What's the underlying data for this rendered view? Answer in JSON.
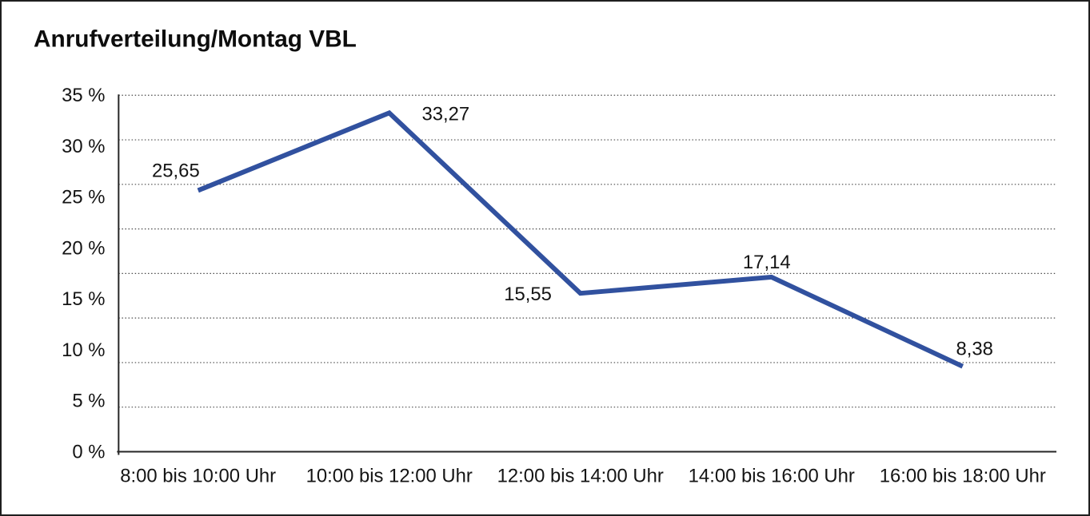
{
  "window": {
    "background": "#ffffff",
    "border_color": "#1f1f1f"
  },
  "chart_data": {
    "type": "line",
    "title": "Anrufverteilung/Montag VBL",
    "categories": [
      "8:00 bis 10:00 Uhr",
      "10:00 bis 12:00 Uhr",
      "12:00 bis 14:00 Uhr",
      "14:00 bis 16:00 Uhr",
      "16:00 bis 18:00 Uhr"
    ],
    "values": [
      25.65,
      33.27,
      15.55,
      17.14,
      8.38
    ],
    "value_labels": [
      "25,65",
      "33,27",
      "15,55",
      "17,14",
      "8,38"
    ],
    "value_label_positions": [
      "above-left",
      "right",
      "left",
      "above",
      "above-right"
    ],
    "xlabel": "",
    "ylabel": "",
    "ylim": [
      0,
      35
    ],
    "y_tick_values": [
      35,
      30,
      25,
      20,
      15,
      10,
      5,
      0
    ],
    "y_tick_labels": [
      "35 %",
      "30 %",
      "25 %",
      "20 %",
      "15 %",
      "10 %",
      "5 %",
      "0 %"
    ],
    "grid": "horizontal dotted gridlines, 8 intervals between top line and x-axis",
    "legend": "none",
    "line_color": "#31519f",
    "text_color": "#141414"
  }
}
